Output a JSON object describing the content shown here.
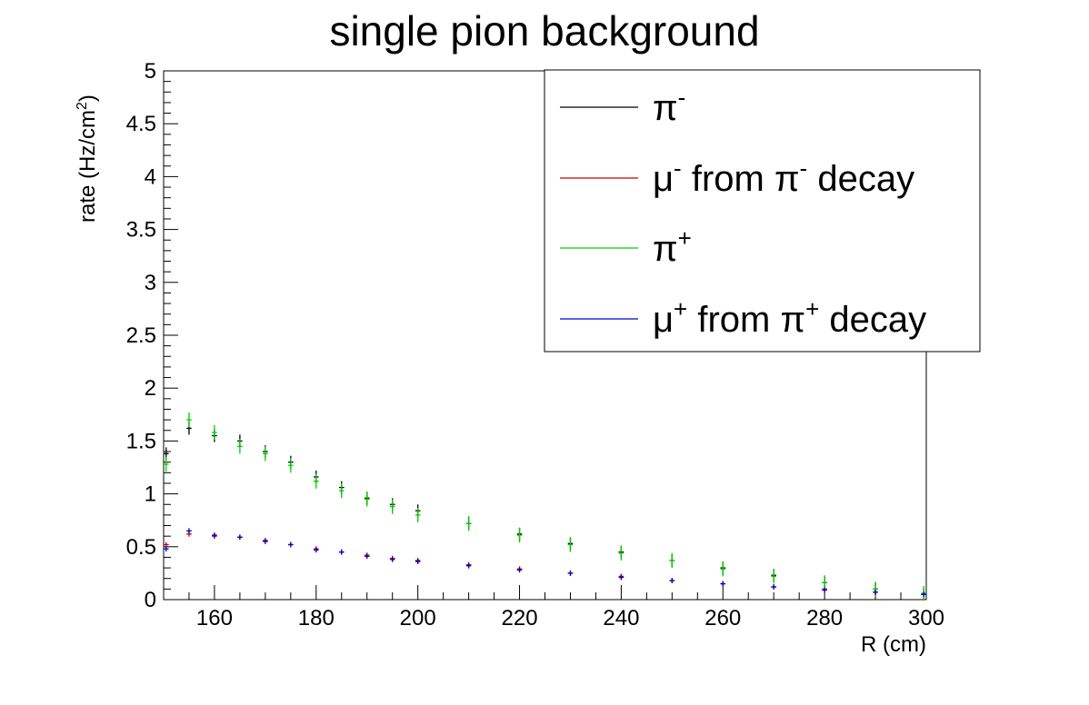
{
  "chart_data": {
    "type": "scatter",
    "title": "single pion background",
    "xlabel": "R (cm)",
    "ylabel": {
      "main": "rate (Hz/cm",
      "sup": "2",
      "close": ")"
    },
    "xlim": [
      150,
      300
    ],
    "ylim": [
      0,
      5
    ],
    "x_ticks": [
      160,
      180,
      200,
      220,
      240,
      260,
      280,
      300
    ],
    "y_ticks": [
      {
        "v": 0,
        "label": "0"
      },
      {
        "v": 0.5,
        "label": "0.5"
      },
      {
        "v": 1,
        "label": "1"
      },
      {
        "v": 1.5,
        "label": "1.5"
      },
      {
        "v": 2,
        "label": "2"
      },
      {
        "v": 2.5,
        "label": "2.5"
      },
      {
        "v": 3,
        "label": "3"
      },
      {
        "v": 3.5,
        "label": "3.5"
      },
      {
        "v": 4,
        "label": "4"
      },
      {
        "v": 4.5,
        "label": "4.5"
      },
      {
        "v": 5,
        "label": "5"
      }
    ],
    "legend_position": "top-right",
    "bin_width": 1,
    "series": [
      {
        "key": "pim",
        "color": "#000000",
        "legend": [
          {
            "t": "π"
          },
          {
            "t": "-",
            "sup": true
          }
        ],
        "x": [
          150.5,
          155,
          160,
          165,
          170,
          175,
          180,
          185,
          190,
          195,
          200,
          210,
          220,
          230,
          240,
          250,
          260,
          270,
          280,
          290,
          299.5
        ],
        "y": [
          1.38,
          1.62,
          1.55,
          1.5,
          1.4,
          1.3,
          1.16,
          1.06,
          0.96,
          0.9,
          0.84,
          0.72,
          0.62,
          0.53,
          0.45,
          0.37,
          0.3,
          0.23,
          0.16,
          0.1,
          0.05
        ],
        "err": 0.06
      },
      {
        "key": "mum",
        "color": "#cc0000",
        "legend": [
          {
            "t": "μ"
          },
          {
            "t": "-",
            "sup": true
          },
          {
            "t": " from π"
          },
          {
            "t": "-",
            "sup": true
          },
          {
            "t": " decay"
          }
        ],
        "x": [
          150.5,
          155,
          160,
          165,
          170,
          175,
          180,
          185,
          190,
          195,
          200,
          210,
          220,
          230,
          240,
          250,
          260,
          270,
          280,
          290,
          299.5
        ],
        "y": [
          0.52,
          0.62,
          0.6,
          0.59,
          0.56,
          0.52,
          0.48,
          0.45,
          0.42,
          0.39,
          0.37,
          0.33,
          0.29,
          0.25,
          0.22,
          0.18,
          0.15,
          0.12,
          0.1,
          0.07,
          0.05
        ],
        "err": 0.025
      },
      {
        "key": "pip",
        "color": "#00cc00",
        "legend": [
          {
            "t": "π"
          },
          {
            "t": "+",
            "sup": true
          }
        ],
        "x": [
          150.5,
          155,
          160,
          165,
          170,
          175,
          180,
          185,
          190,
          195,
          200,
          210,
          220,
          230,
          240,
          250,
          260,
          270,
          280,
          290,
          299.5
        ],
        "y": [
          1.28,
          1.7,
          1.58,
          1.45,
          1.38,
          1.27,
          1.12,
          1.03,
          0.95,
          0.88,
          0.8,
          0.72,
          0.61,
          0.52,
          0.44,
          0.37,
          0.29,
          0.22,
          0.16,
          0.1,
          0.06
        ],
        "err": 0.07
      },
      {
        "key": "mup",
        "color": "#0000cc",
        "legend": [
          {
            "t": "μ"
          },
          {
            "t": "+",
            "sup": true
          },
          {
            "t": " from π"
          },
          {
            "t": "+",
            "sup": true
          },
          {
            "t": " decay"
          }
        ],
        "x": [
          150.5,
          155,
          160,
          165,
          170,
          175,
          180,
          185,
          190,
          195,
          200,
          210,
          220,
          230,
          240,
          250,
          260,
          270,
          280,
          290,
          299.5
        ],
        "y": [
          0.48,
          0.65,
          0.61,
          0.59,
          0.55,
          0.52,
          0.47,
          0.45,
          0.41,
          0.38,
          0.36,
          0.32,
          0.28,
          0.25,
          0.21,
          0.18,
          0.15,
          0.12,
          0.09,
          0.07,
          0.05
        ],
        "err": 0.025
      }
    ]
  }
}
